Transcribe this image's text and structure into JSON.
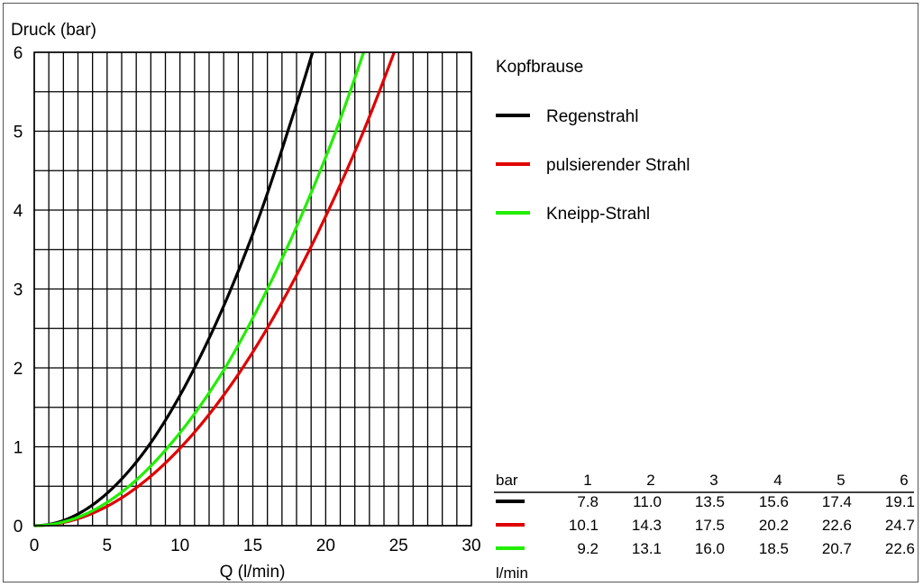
{
  "chart_data": {
    "type": "line",
    "ylabel": "Druck (bar)",
    "xlabel": "Q  (l/min)",
    "xlim": [
      0,
      30
    ],
    "ylim": [
      0,
      6
    ],
    "x_ticks": [
      "0",
      "5",
      "10",
      "15",
      "20",
      "25",
      "30"
    ],
    "y_ticks": [
      "0",
      "1",
      "2",
      "3",
      "4",
      "5",
      "6"
    ],
    "grid": true,
    "legend_title": "Kopfbrause",
    "legend_placement": "top-right",
    "series": [
      {
        "name": "Regenstrahl",
        "color": "#000000",
        "x": [
          0,
          7.8,
          11.0,
          13.5,
          15.6,
          17.4,
          19.1
        ],
        "y": [
          0,
          1,
          2,
          3,
          4,
          5,
          6
        ]
      },
      {
        "name": "pulsierender Strahl",
        "color": "#e00000",
        "x": [
          0,
          10.1,
          14.3,
          17.5,
          20.2,
          22.6,
          24.7
        ],
        "y": [
          0,
          1,
          2,
          3,
          4,
          5,
          6
        ]
      },
      {
        "name": "Kneipp-Strahl",
        "color": "#22ee00",
        "x": [
          0,
          9.2,
          13.1,
          16.0,
          18.5,
          20.7,
          22.6
        ],
        "y": [
          0,
          1,
          2,
          3,
          4,
          5,
          6
        ]
      }
    ],
    "table": {
      "header_label": "bar",
      "columns": [
        "1",
        "2",
        "3",
        "4",
        "5",
        "6"
      ],
      "rows": [
        {
          "color": "#000000",
          "values": [
            "7.8",
            "11.0",
            "13.5",
            "15.6",
            "17.4",
            "19.1"
          ]
        },
        {
          "color": "#e00000",
          "values": [
            "10.1",
            "14.3",
            "17.5",
            "20.2",
            "22.6",
            "24.7"
          ]
        },
        {
          "color": "#22ee00",
          "values": [
            "9.2",
            "13.1",
            "16.0",
            "18.5",
            "20.7",
            "22.6"
          ]
        }
      ],
      "unit_label": "l/min"
    }
  }
}
